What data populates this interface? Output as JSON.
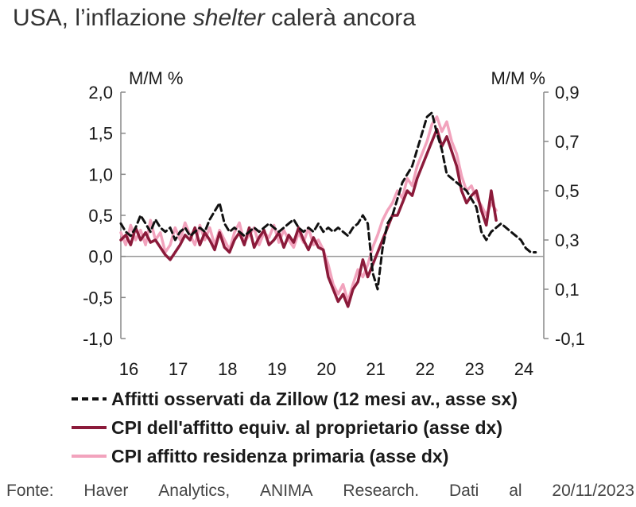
{
  "title_parts": {
    "a": "USA, l’inflazione ",
    "b": "shelter",
    "c": " calerà ancora"
  },
  "source": {
    "words": [
      "Fonte:",
      "Haver",
      "Analytics,",
      "ANIMA",
      "Research.",
      "Dati",
      "al",
      "20/11/2023"
    ]
  },
  "chart_data": {
    "type": "line",
    "title": "USA, l’inflazione shelter calerà ancora",
    "y_left": {
      "label": "M/M %",
      "range": [
        -1.0,
        2.0
      ],
      "ticks": [
        "-1,0",
        "-0,5",
        "0,0",
        "0,5",
        "1,0",
        "1,5",
        "2,0"
      ],
      "tick_values": [
        -1.0,
        -0.5,
        0.0,
        0.5,
        1.0,
        1.5,
        2.0
      ]
    },
    "y_right": {
      "label": "M/M %",
      "range": [
        -0.1,
        0.9
      ],
      "ticks": [
        "-0,1",
        "0,1",
        "0,3",
        "0,5",
        "0,7",
        "0,9"
      ],
      "tick_values": [
        -0.1,
        0.1,
        0.3,
        0.5,
        0.7,
        0.9
      ]
    },
    "x_axis": {
      "range": [
        2016,
        2024.5
      ],
      "ticks": [
        "16",
        "17",
        "18",
        "19",
        "20",
        "21",
        "22",
        "23",
        "24"
      ],
      "tick_values": [
        2016,
        2017,
        2018,
        2019,
        2020,
        2021,
        2022,
        2023,
        2024
      ]
    },
    "zero_line": true,
    "series": [
      {
        "name": "Affitti osservati da Zillow (12 mesi av., asse sx)",
        "axis": "left",
        "color": "#111111",
        "style": "dashed",
        "x": [
          2016.0,
          2016.1,
          2016.2,
          2016.3,
          2016.4,
          2016.5,
          2016.6,
          2016.7,
          2016.8,
          2016.9,
          2017.0,
          2017.1,
          2017.2,
          2017.3,
          2017.4,
          2017.5,
          2017.6,
          2017.7,
          2017.8,
          2017.9,
          2018.0,
          2018.1,
          2018.2,
          2018.3,
          2018.4,
          2018.5,
          2018.6,
          2018.7,
          2018.8,
          2018.9,
          2019.0,
          2019.1,
          2019.2,
          2019.3,
          2019.4,
          2019.5,
          2019.6,
          2019.7,
          2019.8,
          2019.9,
          2020.0,
          2020.1,
          2020.2,
          2020.3,
          2020.4,
          2020.5,
          2020.6,
          2020.7,
          2020.8,
          2020.9,
          2021.0,
          2021.1,
          2021.2,
          2021.3,
          2021.4,
          2021.5,
          2021.6,
          2021.7,
          2021.8,
          2021.9,
          2022.0,
          2022.1,
          2022.2,
          2022.3,
          2022.4,
          2022.5,
          2022.6,
          2022.7,
          2022.8,
          2022.9,
          2023.0,
          2023.1,
          2023.2,
          2023.3,
          2023.4,
          2023.5,
          2023.6,
          2023.7,
          2023.8,
          2023.9,
          2024.0,
          2024.1,
          2024.2,
          2024.3,
          2024.4
        ],
        "values": [
          0.4,
          0.3,
          0.25,
          0.35,
          0.5,
          0.4,
          0.3,
          0.45,
          0.35,
          0.3,
          0.35,
          0.2,
          0.3,
          0.35,
          0.25,
          0.3,
          0.35,
          0.3,
          0.45,
          0.55,
          0.65,
          0.4,
          0.3,
          0.35,
          0.3,
          0.25,
          0.3,
          0.35,
          0.3,
          0.35,
          0.4,
          0.35,
          0.3,
          0.35,
          0.4,
          0.45,
          0.35,
          0.3,
          0.35,
          0.3,
          0.4,
          0.3,
          0.35,
          0.3,
          0.35,
          0.3,
          0.25,
          0.35,
          0.4,
          0.5,
          0.4,
          -0.2,
          -0.4,
          0.1,
          0.4,
          0.5,
          0.7,
          0.9,
          1.0,
          1.1,
          1.3,
          1.5,
          1.7,
          1.75,
          1.5,
          1.3,
          1.0,
          0.95,
          0.9,
          0.85,
          0.8,
          0.7,
          0.6,
          0.3,
          0.2,
          0.3,
          0.35,
          0.4,
          0.35,
          0.3,
          0.25,
          0.2,
          0.1,
          0.05,
          0.05
        ]
      },
      {
        "name": "CPI dell'affitto equiv. al proprietario (asse dx)",
        "axis": "right",
        "color": "#8b1a3a",
        "style": "solid",
        "x": [
          2016.0,
          2016.1,
          2016.2,
          2016.3,
          2016.4,
          2016.5,
          2016.6,
          2016.7,
          2016.8,
          2016.9,
          2017.0,
          2017.1,
          2017.2,
          2017.3,
          2017.4,
          2017.5,
          2017.6,
          2017.7,
          2017.8,
          2017.9,
          2018.0,
          2018.1,
          2018.2,
          2018.3,
          2018.4,
          2018.5,
          2018.6,
          2018.7,
          2018.8,
          2018.9,
          2019.0,
          2019.1,
          2019.2,
          2019.3,
          2019.4,
          2019.5,
          2019.6,
          2019.7,
          2019.8,
          2019.9,
          2020.0,
          2020.1,
          2020.2,
          2020.3,
          2020.4,
          2020.5,
          2020.6,
          2020.7,
          2020.8,
          2020.9,
          2021.0,
          2021.1,
          2021.2,
          2021.3,
          2021.4,
          2021.5,
          2021.6,
          2021.7,
          2021.8,
          2021.9,
          2022.0,
          2022.1,
          2022.2,
          2022.3,
          2022.4,
          2022.5,
          2022.6,
          2022.7,
          2022.8,
          2022.9,
          2023.0,
          2023.1,
          2023.2,
          2023.3,
          2023.4,
          2023.5,
          2023.6
        ],
        "values": [
          0.3,
          0.32,
          0.28,
          0.35,
          0.3,
          0.33,
          0.29,
          0.3,
          0.27,
          0.24,
          0.22,
          0.25,
          0.28,
          0.32,
          0.3,
          0.35,
          0.28,
          0.33,
          0.3,
          0.26,
          0.33,
          0.27,
          0.25,
          0.3,
          0.33,
          0.28,
          0.35,
          0.27,
          0.31,
          0.34,
          0.28,
          0.3,
          0.33,
          0.27,
          0.32,
          0.29,
          0.35,
          0.3,
          0.26,
          0.31,
          0.27,
          0.26,
          0.15,
          0.1,
          0.05,
          0.08,
          0.03,
          0.1,
          0.13,
          0.22,
          0.15,
          0.2,
          0.25,
          0.3,
          0.35,
          0.4,
          0.4,
          0.45,
          0.5,
          0.48,
          0.55,
          0.6,
          0.65,
          0.7,
          0.75,
          0.68,
          0.72,
          0.66,
          0.6,
          0.5,
          0.45,
          0.48,
          0.5,
          0.42,
          0.36,
          0.5,
          0.38
        ]
      },
      {
        "name": "CPI affitto residenza primaria (asse dx)",
        "axis": "right",
        "color": "#f2a3bd",
        "style": "solid",
        "x": [
          2016.0,
          2016.1,
          2016.2,
          2016.3,
          2016.4,
          2016.5,
          2016.6,
          2016.7,
          2016.8,
          2016.9,
          2017.0,
          2017.1,
          2017.2,
          2017.3,
          2017.4,
          2017.5,
          2017.6,
          2017.7,
          2017.8,
          2017.9,
          2018.0,
          2018.1,
          2018.2,
          2018.3,
          2018.4,
          2018.5,
          2018.6,
          2018.7,
          2018.8,
          2018.9,
          2019.0,
          2019.1,
          2019.2,
          2019.3,
          2019.4,
          2019.5,
          2019.6,
          2019.7,
          2019.8,
          2019.9,
          2020.0,
          2020.1,
          2020.2,
          2020.3,
          2020.4,
          2020.5,
          2020.6,
          2020.7,
          2020.8,
          2020.9,
          2021.0,
          2021.1,
          2021.2,
          2021.3,
          2021.4,
          2021.5,
          2021.6,
          2021.7,
          2021.8,
          2021.9,
          2022.0,
          2022.1,
          2022.2,
          2022.3,
          2022.4,
          2022.5,
          2022.6,
          2022.7,
          2022.8,
          2022.9,
          2023.0,
          2023.1,
          2023.2,
          2023.3,
          2023.4,
          2023.5,
          2023.6
        ],
        "values": [
          0.33,
          0.28,
          0.36,
          0.3,
          0.34,
          0.28,
          0.38,
          0.3,
          0.33,
          0.25,
          0.28,
          0.35,
          0.3,
          0.37,
          0.32,
          0.28,
          0.36,
          0.3,
          0.35,
          0.28,
          0.34,
          0.3,
          0.26,
          0.33,
          0.37,
          0.29,
          0.32,
          0.35,
          0.28,
          0.33,
          0.31,
          0.36,
          0.29,
          0.34,
          0.3,
          0.27,
          0.33,
          0.29,
          0.35,
          0.28,
          0.3,
          0.26,
          0.2,
          0.12,
          0.08,
          0.12,
          0.05,
          0.12,
          0.18,
          0.15,
          0.2,
          0.27,
          0.32,
          0.38,
          0.42,
          0.45,
          0.5,
          0.47,
          0.55,
          0.52,
          0.6,
          0.65,
          0.7,
          0.77,
          0.8,
          0.74,
          0.78,
          0.7,
          0.65,
          0.56,
          0.5,
          0.52,
          0.47,
          0.44,
          0.4,
          0.45,
          0.42
        ]
      }
    ]
  }
}
